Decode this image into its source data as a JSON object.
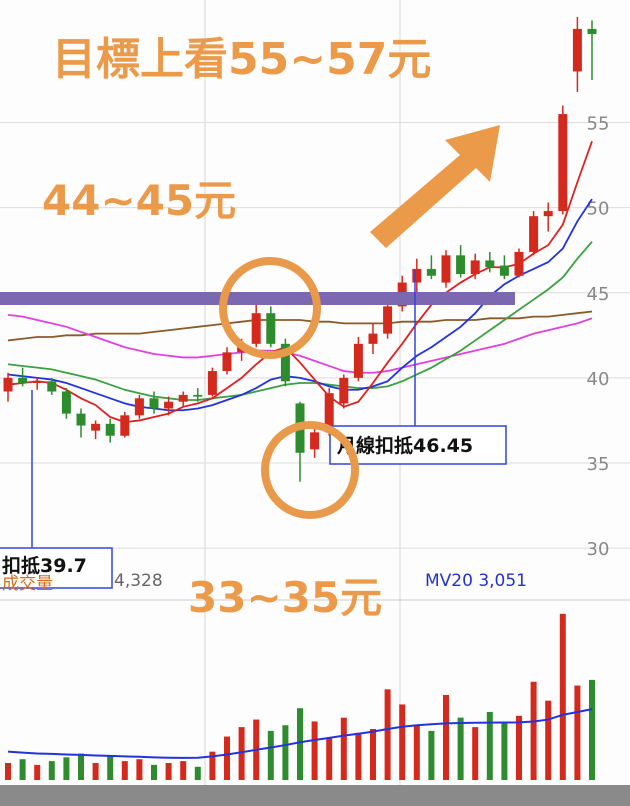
{
  "chart_data": {
    "type": "candlestick",
    "title": "目標上看55~57元",
    "annotations": [
      "44~45元",
      "33~35元"
    ],
    "label_boxes": [
      "月線扣抵46.45",
      "扣抵39.7"
    ],
    "volume_title": "成交量",
    "volume_label": "4,328",
    "volume_ma_label": "MV20 3,051",
    "categories": [
      null,
      null,
      null,
      null,
      null,
      null,
      null,
      null,
      null,
      null,
      null,
      null,
      null,
      null,
      null,
      null,
      null,
      null,
      null,
      null,
      null,
      null,
      null,
      null,
      null,
      null,
      null,
      null,
      null,
      null,
      null,
      null,
      null,
      null,
      null,
      null,
      null,
      null,
      null,
      null,
      null
    ],
    "open": [
      39.2,
      40.0,
      39.7,
      39.8,
      39.2,
      37.9,
      36.9,
      37.3,
      36.6,
      37.8,
      38.8,
      38.2,
      38.6,
      39.0,
      39.0,
      40.4,
      41.5,
      42.0,
      43.8,
      42.0,
      38.5,
      35.8,
      36.8,
      38.5,
      40.0,
      42.0,
      42.6,
      44.2,
      45.6,
      46.4,
      45.6,
      47.2,
      46.1,
      46.9,
      46.6,
      46.0,
      47.4,
      49.5,
      49.8,
      58.0,
      60.5
    ],
    "high": [
      40.3,
      40.6,
      40.0,
      40.0,
      39.4,
      38.2,
      37.5,
      37.6,
      38.0,
      39.0,
      39.2,
      38.9,
      39.2,
      39.4,
      40.6,
      41.8,
      42.3,
      44.3,
      44.2,
      42.3,
      38.6,
      37.2,
      39.4,
      40.2,
      42.4,
      43.2,
      44.5,
      46.0,
      47.0,
      47.2,
      47.5,
      47.8,
      47.3,
      47.4,
      47.2,
      47.6,
      49.8,
      50.3,
      56.0,
      61.2,
      61.0
    ],
    "low": [
      38.6,
      39.5,
      39.3,
      39.0,
      37.6,
      36.5,
      36.4,
      36.2,
      36.5,
      37.6,
      37.9,
      37.8,
      38.3,
      38.6,
      38.9,
      40.2,
      41.0,
      41.8,
      41.8,
      39.5,
      33.9,
      35.3,
      36.6,
      38.2,
      39.8,
      41.4,
      42.3,
      43.9,
      45.0,
      45.8,
      45.3,
      45.9,
      45.8,
      46.2,
      45.8,
      45.9,
      47.2,
      48.6,
      49.6,
      56.8,
      57.5
    ],
    "close": [
      40.0,
      39.7,
      39.8,
      39.2,
      37.9,
      37.2,
      37.3,
      36.6,
      37.8,
      38.8,
      38.2,
      38.6,
      39.0,
      38.9,
      40.4,
      41.5,
      41.8,
      43.8,
      42.0,
      39.8,
      35.6,
      36.8,
      39.1,
      40.0,
      42.0,
      42.6,
      44.2,
      45.6,
      46.4,
      46.0,
      47.2,
      46.1,
      46.9,
      46.5,
      46.0,
      47.4,
      49.5,
      49.8,
      55.5,
      60.5,
      60.2
    ],
    "up_color": "#d42a1e",
    "down_color": "#2e8b2e",
    "lines": [
      {
        "color": "#8b5a2b",
        "values": [
          42.2,
          42.3,
          42.4,
          42.4,
          42.5,
          42.5,
          42.6,
          42.6,
          42.6,
          42.6,
          42.7,
          42.8,
          42.9,
          43.0,
          43.1,
          43.2,
          43.3,
          43.4,
          43.4,
          43.4,
          43.4,
          43.3,
          43.3,
          43.2,
          43.2,
          43.2,
          43.2,
          43.3,
          43.3,
          43.3,
          43.4,
          43.4,
          43.4,
          43.5,
          43.5,
          43.5,
          43.6,
          43.6,
          43.7,
          43.8,
          43.9
        ]
      },
      {
        "color": "#e040e0",
        "values": [
          43.7,
          43.6,
          43.4,
          43.2,
          43.0,
          42.7,
          42.4,
          42.1,
          41.8,
          41.6,
          41.4,
          41.3,
          41.2,
          41.2,
          41.3,
          41.4,
          41.5,
          41.6,
          41.6,
          41.5,
          41.3,
          41.0,
          40.7,
          40.4,
          40.3,
          40.3,
          40.4,
          40.6,
          40.8,
          41.0,
          41.2,
          41.4,
          41.6,
          41.8,
          42.0,
          42.3,
          42.6,
          42.8,
          43.0,
          43.2,
          43.5
        ]
      },
      {
        "color": "#3aa040",
        "values": [
          40.8,
          40.7,
          40.6,
          40.5,
          40.3,
          40.1,
          39.9,
          39.6,
          39.3,
          39.1,
          38.9,
          38.8,
          38.7,
          38.7,
          38.8,
          38.9,
          39.0,
          39.2,
          39.4,
          39.6,
          39.7,
          39.7,
          39.6,
          39.5,
          39.4,
          39.4,
          39.5,
          39.8,
          40.2,
          40.6,
          41.1,
          41.6,
          42.2,
          42.8,
          43.4,
          44.0,
          44.6,
          45.2,
          45.9,
          47.0,
          48.0
        ]
      },
      {
        "color": "#2233dd",
        "values": [
          40.2,
          40.1,
          40.0,
          39.9,
          39.7,
          39.4,
          39.1,
          38.8,
          38.5,
          38.3,
          38.2,
          38.1,
          38.1,
          38.2,
          38.4,
          38.7,
          39.0,
          39.4,
          39.9,
          40.1,
          40.0,
          39.8,
          39.5,
          39.3,
          39.3,
          39.5,
          39.8,
          40.6,
          41.3,
          41.8,
          42.4,
          43.0,
          43.8,
          44.8,
          45.5,
          46.0,
          46.4,
          46.8,
          47.6,
          49.2,
          50.5
        ]
      },
      {
        "color": "#e02020",
        "values": [
          39.6,
          39.7,
          39.8,
          39.7,
          39.3,
          38.8,
          38.4,
          37.7,
          37.4,
          37.5,
          37.7,
          37.9,
          38.3,
          38.5,
          38.8,
          39.4,
          40.0,
          40.8,
          41.5,
          41.8,
          40.9,
          39.9,
          38.9,
          38.3,
          38.6,
          39.7,
          40.9,
          42.0,
          43.2,
          44.3,
          45.0,
          45.6,
          46.1,
          46.5,
          46.5,
          46.7,
          47.3,
          47.8,
          49.0,
          51.5,
          53.9
        ]
      }
    ],
    "volume": [
      900,
      1100,
      800,
      1000,
      1200,
      1400,
      900,
      1300,
      1000,
      1100,
      800,
      900,
      1000,
      700,
      1500,
      2300,
      2800,
      3200,
      2600,
      2900,
      3800,
      3100,
      2200,
      3300,
      2500,
      2700,
      4800,
      4000,
      2900,
      2600,
      4500,
      3300,
      2800,
      3600,
      3000,
      3400,
      5200,
      4200,
      8800,
      5000,
      5300
    ],
    "volume_ma": [
      1500,
      1450,
      1400,
      1380,
      1350,
      1330,
      1300,
      1280,
      1250,
      1230,
      1200,
      1180,
      1170,
      1180,
      1250,
      1350,
      1470,
      1600,
      1720,
      1850,
      2000,
      2120,
      2230,
      2350,
      2450,
      2560,
      2700,
      2820,
      2900,
      2950,
      3000,
      3020,
      3030,
      3040,
      3045,
      3050,
      3100,
      3200,
      3450,
      3600,
      3750
    ],
    "volume_ma_color": "#2233dd",
    "volume_ylim": [
      0,
      9000
    ],
    "ylim": [
      29.3,
      62.2
    ],
    "yticks": [
      30,
      35,
      40,
      45,
      50,
      55
    ],
    "grid": true
  }
}
